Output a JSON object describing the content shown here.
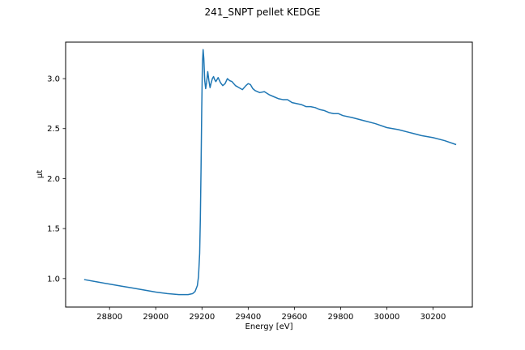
{
  "chart_data": {
    "type": "line",
    "title": "241_SNPT pellet KEDGE",
    "xlabel": "Energy [eV]",
    "ylabel": "μt",
    "xlim": [
      28610,
      30370
    ],
    "ylim": [
      0.715,
      3.365
    ],
    "xticks": [
      28800,
      29000,
      29200,
      29400,
      29600,
      29800,
      30000,
      30200
    ],
    "yticks": [
      1.0,
      1.5,
      2.0,
      2.5,
      3.0
    ],
    "ytick_labels": [
      "1.0",
      "1.5",
      "2.0",
      "2.5",
      "3.0"
    ],
    "grid": false,
    "line_color": "#1f77b4",
    "series": [
      {
        "x": [
          28690,
          28750,
          28800,
          28850,
          28900,
          28950,
          29000,
          29050,
          29100,
          29140,
          29160,
          29170,
          29180,
          29185,
          29190,
          29193,
          29196,
          29199,
          29202,
          29205,
          29208,
          29212,
          29216,
          29220,
          29225,
          29230,
          29235,
          29240,
          29245,
          29250,
          29255,
          29260,
          29265,
          29270,
          29280,
          29290,
          29300,
          29310,
          29320,
          29330,
          29345,
          29360,
          29375,
          29390,
          29400,
          29410,
          29420,
          29430,
          29450,
          29470,
          29490,
          29510,
          29530,
          29550,
          29570,
          29590,
          29610,
          29630,
          29650,
          29670,
          29690,
          29710,
          29730,
          29750,
          29770,
          29790,
          29810,
          29850,
          29900,
          29950,
          30000,
          30050,
          30100,
          30150,
          30200,
          30250,
          30300
        ],
        "y": [
          0.99,
          0.965,
          0.945,
          0.925,
          0.905,
          0.885,
          0.865,
          0.85,
          0.84,
          0.84,
          0.85,
          0.87,
          0.93,
          1.02,
          1.25,
          1.6,
          2.1,
          2.7,
          3.15,
          3.29,
          3.2,
          2.98,
          2.9,
          2.96,
          3.07,
          2.98,
          2.91,
          2.96,
          3.0,
          3.02,
          2.99,
          2.97,
          2.99,
          3.01,
          2.96,
          2.93,
          2.95,
          3.0,
          2.98,
          2.97,
          2.93,
          2.91,
          2.89,
          2.93,
          2.95,
          2.94,
          2.9,
          2.88,
          2.86,
          2.87,
          2.84,
          2.82,
          2.8,
          2.79,
          2.79,
          2.76,
          2.75,
          2.74,
          2.72,
          2.72,
          2.71,
          2.69,
          2.68,
          2.66,
          2.65,
          2.65,
          2.63,
          2.61,
          2.58,
          2.55,
          2.51,
          2.49,
          2.46,
          2.43,
          2.41,
          2.38,
          2.34
        ]
      }
    ]
  }
}
